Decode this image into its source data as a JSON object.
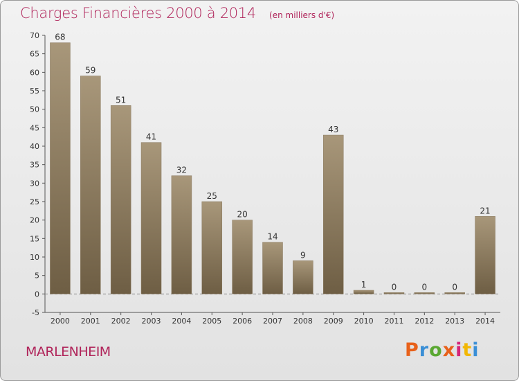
{
  "header": {
    "title": "Charges Financières 2000 à 2014",
    "subtitle": "(en milliers d'€)"
  },
  "footer": {
    "commune": "MARLENHEIM",
    "logo_text": "Proxiti",
    "logo_colors": [
      "#e8611a",
      "#3a8fd6",
      "#5aa832",
      "#e8611a",
      "#d6267a",
      "#f2b705",
      "#3a8fd6"
    ]
  },
  "chart_data": {
    "type": "bar",
    "title": "Charges Financières 2000 à 2014",
    "subtitle": "(en milliers d'€)",
    "categories": [
      "2000",
      "2001",
      "2002",
      "2003",
      "2004",
      "2005",
      "2006",
      "2007",
      "2008",
      "2009",
      "2010",
      "2011",
      "2012",
      "2013",
      "2014"
    ],
    "values": [
      68,
      59,
      51,
      41,
      32,
      25,
      20,
      14,
      9,
      43,
      1,
      0,
      0,
      0,
      21
    ],
    "data_labels": [
      "68",
      "59",
      "51",
      "41",
      "32",
      "25",
      "20",
      "14",
      "9",
      "43",
      "1",
      "0",
      "0",
      "0",
      "21"
    ],
    "yticks": [
      -5,
      0,
      5,
      10,
      15,
      20,
      25,
      30,
      35,
      40,
      45,
      50,
      55,
      60,
      65,
      70
    ],
    "ylim": [
      -5,
      70
    ],
    "grid": false,
    "colors": {
      "bar_top": "#a8977a",
      "bar_bottom": "#6e5e44",
      "title": "#b0245a"
    }
  }
}
